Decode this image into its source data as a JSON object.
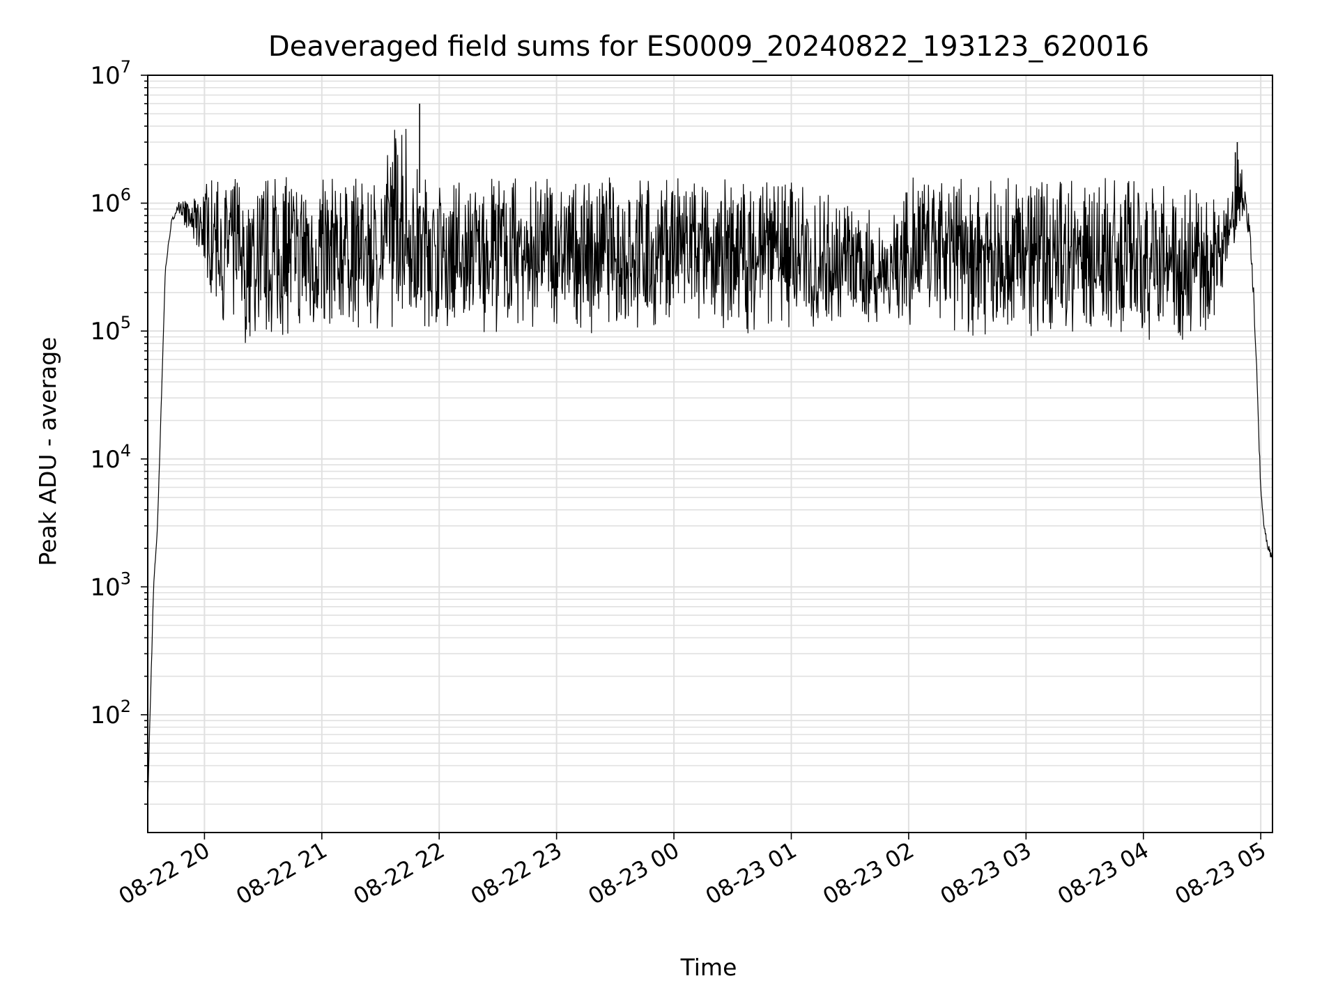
{
  "chart_data": {
    "type": "line",
    "title": "Deaveraged field sums for ES0009_20240822_193123_620016",
    "xlabel": "Time",
    "ylabel": "Peak ADU - average",
    "yscale": "log",
    "ylim": [
      12,
      10000000
    ],
    "xlim": [
      "2024-08-22 19:31",
      "2024-08-23 05:06"
    ],
    "x_ticks": [
      {
        "t": "2024-08-22 20:00",
        "label": "08-22 20"
      },
      {
        "t": "2024-08-22 21:00",
        "label": "08-22 21"
      },
      {
        "t": "2024-08-22 22:00",
        "label": "08-22 22"
      },
      {
        "t": "2024-08-22 23:00",
        "label": "08-22 23"
      },
      {
        "t": "2024-08-23 00:00",
        "label": "08-23 00"
      },
      {
        "t": "2024-08-23 01:00",
        "label": "08-23 01"
      },
      {
        "t": "2024-08-23 02:00",
        "label": "08-23 02"
      },
      {
        "t": "2024-08-23 03:00",
        "label": "08-23 03"
      },
      {
        "t": "2024-08-23 04:00",
        "label": "08-23 04"
      },
      {
        "t": "2024-08-23 05:00",
        "label": "08-23 05"
      }
    ],
    "y_ticks": [
      {
        "v": 100,
        "base": "10",
        "exp": "2"
      },
      {
        "v": 1000,
        "base": "10",
        "exp": "3"
      },
      {
        "v": 10000,
        "base": "10",
        "exp": "4"
      },
      {
        "v": 100000,
        "base": "10",
        "exp": "5"
      },
      {
        "v": 1000000,
        "base": "10",
        "exp": "6"
      },
      {
        "v": 10000000,
        "base": "10",
        "exp": "7"
      }
    ],
    "grid": true,
    "line_color": "#000000",
    "grid_color": "#e0e0e0",
    "series": [
      {
        "x": [
          "2024-08-22 19:31",
          "2024-08-22 19:32",
          "2024-08-22 19:34",
          "2024-08-22 19:36",
          "2024-08-22 19:38",
          "2024-08-22 19:40",
          "2024-08-22 19:43",
          "2024-08-22 19:46",
          "2024-08-22 19:49",
          "2024-08-22 19:52",
          "2024-08-22 19:55",
          "2024-08-22 19:58",
          "2024-08-22 20:02",
          "2024-08-22 20:06",
          "2024-08-22 20:10",
          "2024-08-22 20:14",
          "2024-08-22 20:18",
          "2024-08-22 20:22",
          "2024-08-22 20:26",
          "2024-08-22 20:30",
          "2024-08-22 20:35",
          "2024-08-22 20:40",
          "2024-08-22 20:45",
          "2024-08-22 20:50",
          "2024-08-22 20:55",
          "2024-08-22 21:00",
          "2024-08-22 21:10",
          "2024-08-22 21:20",
          "2024-08-22 21:30",
          "2024-08-22 21:40",
          "2024-08-22 21:50",
          "2024-08-22 22:00",
          "2024-08-22 22:10",
          "2024-08-22 22:20",
          "2024-08-22 22:30",
          "2024-08-22 22:40",
          "2024-08-22 22:50",
          "2024-08-22 23:00",
          "2024-08-22 23:15",
          "2024-08-22 23:30",
          "2024-08-22 23:45",
          "2024-08-23 00:00",
          "2024-08-23 00:15",
          "2024-08-23 00:30",
          "2024-08-23 00:45",
          "2024-08-23 01:00",
          "2024-08-23 01:10",
          "2024-08-23 01:20",
          "2024-08-23 01:30",
          "2024-08-23 01:40",
          "2024-08-23 01:50",
          "2024-08-23 02:00",
          "2024-08-23 02:20",
          "2024-08-23 02:40",
          "2024-08-23 03:00",
          "2024-08-23 03:20",
          "2024-08-23 03:40",
          "2024-08-23 04:00",
          "2024-08-23 04:10",
          "2024-08-23 04:20",
          "2024-08-23 04:30",
          "2024-08-23 04:35",
          "2024-08-23 04:40",
          "2024-08-23 04:45",
          "2024-08-23 04:48",
          "2024-08-23 04:50",
          "2024-08-23 04:52",
          "2024-08-23 04:54",
          "2024-08-23 04:56",
          "2024-08-23 04:58",
          "2024-08-23 05:00",
          "2024-08-23 05:02",
          "2024-08-23 05:04",
          "2024-08-23 05:06"
        ],
        "y_low": [
          20,
          80,
          1000,
          3000,
          30000,
          300000,
          700000,
          900000,
          700000,
          550000,
          420000,
          300000,
          200000,
          150000,
          110000,
          100000,
          80000,
          75000,
          70000,
          85000,
          80000,
          78000,
          82000,
          85000,
          80000,
          82000,
          95000,
          100000,
          100000,
          98000,
          105000,
          102000,
          100000,
          96000,
          98000,
          95000,
          100000,
          97000,
          93000,
          95000,
          90000,
          97000,
          92000,
          90000,
          99000,
          100000,
          95000,
          105000,
          100000,
          98000,
          97000,
          95000,
          90000,
          88000,
          92000,
          85000,
          88000,
          80000,
          70000,
          72000,
          78000,
          100000,
          200000,
          350000,
          600000,
          800000,
          700000,
          500000,
          200000,
          40000,
          5000,
          2500,
          1800,
          1600
        ],
        "y_high": [
          20,
          80,
          1000,
          3000,
          30000,
          300000,
          700000,
          1000000,
          1100000,
          1000000,
          1100000,
          1500000,
          1600000,
          1650000,
          1600000,
          1650000,
          1700000,
          1600000,
          1650000,
          1600000,
          1650000,
          1620000,
          1600000,
          1650000,
          1600000,
          1620000,
          1580000,
          1600000,
          1600000,
          6000000,
          1650000,
          1600000,
          1550000,
          1560000,
          1600000,
          1580000,
          1550000,
          1600000,
          1620000,
          1650000,
          1600000,
          1700000,
          1550000,
          1600000,
          1500000,
          1600000,
          1350000,
          1200000,
          1000000,
          900000,
          850000,
          1600000,
          1550000,
          1600000,
          1550000,
          1600000,
          1600000,
          1580000,
          1550000,
          1500000,
          1450000,
          1200000,
          900000,
          1500000,
          2500000,
          3000000,
          1300000,
          800000,
          300000,
          50000,
          6000,
          3000,
          2200,
          1800
        ]
      }
    ]
  }
}
